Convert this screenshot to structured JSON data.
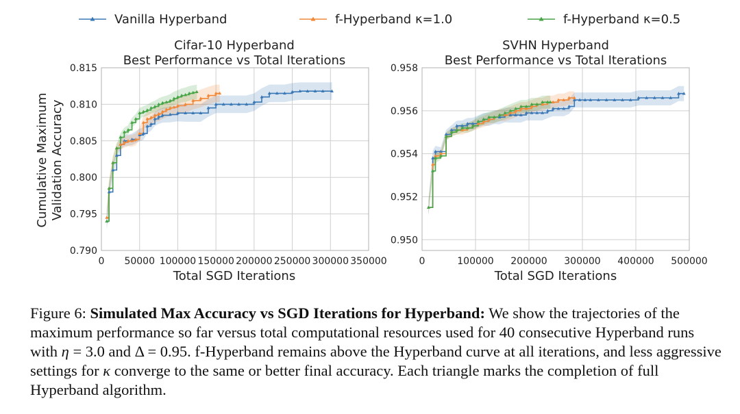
{
  "legend": {
    "entries": [
      {
        "label": "Vanilla Hyperband",
        "color": "#3a78b5"
      },
      {
        "label": "f-Hyperband κ=1.0",
        "color": "#f08838"
      },
      {
        "label": "f-Hyperband κ=0.5",
        "color": "#47a447"
      }
    ]
  },
  "chart_data": [
    {
      "type": "line",
      "title": [
        "Cifar-10 Hyperband",
        "Best Performance vs Total Iterations"
      ],
      "xlabel": "Total SGD Iterations",
      "ylabel": [
        "Cumulative Maximum",
        "Validation Accuracy"
      ],
      "xlim": [
        0,
        350000
      ],
      "ylim": [
        0.79,
        0.815
      ],
      "xticks": [
        0,
        50000,
        100000,
        150000,
        200000,
        250000,
        300000,
        350000
      ],
      "xtick_labels": [
        "0",
        "50000",
        "100000",
        "150000",
        "200000",
        "250000",
        "300000",
        "350000"
      ],
      "yticks": [
        0.79,
        0.795,
        0.8,
        0.805,
        0.81,
        0.815
      ],
      "ytick_labels": [
        "0.790",
        "0.795",
        "0.800",
        "0.805",
        "0.810",
        "0.815"
      ],
      "grid": true,
      "series": [
        {
          "name": "Vanilla Hyperband",
          "color": "#3a78b5",
          "band": 0.0012,
          "x": [
            7000,
            10000,
            15000,
            20000,
            25000,
            30000,
            40000,
            50000,
            55000,
            60000,
            65000,
            70000,
            75000,
            80000,
            90000,
            100000,
            110000,
            120000,
            130000,
            140000,
            150000,
            160000,
            170000,
            180000,
            190000,
            200000,
            210000,
            220000,
            230000,
            240000,
            250000,
            260000,
            270000,
            280000,
            290000,
            302000
          ],
          "y": [
            0.794,
            0.798,
            0.801,
            0.803,
            0.8045,
            0.805,
            0.8052,
            0.8058,
            0.806,
            0.807,
            0.8073,
            0.808,
            0.8083,
            0.8085,
            0.8086,
            0.8088,
            0.8088,
            0.8088,
            0.8088,
            0.8095,
            0.81,
            0.81,
            0.81,
            0.81,
            0.81,
            0.8103,
            0.811,
            0.8115,
            0.8115,
            0.8115,
            0.8117,
            0.8118,
            0.8118,
            0.8118,
            0.8118,
            0.8118
          ]
        },
        {
          "name": "f-Hyperband κ=1.0",
          "color": "#f08838",
          "band": 0.0012,
          "x": [
            7000,
            10000,
            15000,
            20000,
            25000,
            30000,
            35000,
            40000,
            45000,
            50000,
            55000,
            60000,
            65000,
            70000,
            75000,
            80000,
            85000,
            90000,
            95000,
            100000,
            110000,
            120000,
            130000,
            140000,
            150000,
            155000
          ],
          "y": [
            0.7945,
            0.7985,
            0.802,
            0.804,
            0.8045,
            0.8048,
            0.805,
            0.805,
            0.8052,
            0.806,
            0.8075,
            0.808,
            0.8082,
            0.8085,
            0.8087,
            0.809,
            0.8093,
            0.8095,
            0.8096,
            0.8098,
            0.81,
            0.8105,
            0.8108,
            0.8112,
            0.8115,
            0.8115
          ]
        },
        {
          "name": "f-Hyperband κ=0.5",
          "color": "#47a447",
          "band": 0.001,
          "x": [
            7000,
            10000,
            15000,
            20000,
            25000,
            30000,
            35000,
            40000,
            45000,
            50000,
            55000,
            60000,
            65000,
            70000,
            75000,
            80000,
            85000,
            90000,
            95000,
            100000,
            105000,
            110000,
            115000,
            120000,
            125000
          ],
          "y": [
            0.794,
            0.7985,
            0.802,
            0.804,
            0.8055,
            0.8062,
            0.8065,
            0.8075,
            0.808,
            0.8088,
            0.809,
            0.8092,
            0.8095,
            0.8097,
            0.81,
            0.8102,
            0.8103,
            0.8105,
            0.8108,
            0.811,
            0.8112,
            0.8113,
            0.8115,
            0.8116,
            0.8117
          ]
        }
      ]
    },
    {
      "type": "line",
      "title": [
        "SVHN Hyperband",
        "Best Performance vs Total Iterations"
      ],
      "xlabel": "Total SGD Iterations",
      "ylabel": [],
      "xlim": [
        0,
        500000
      ],
      "ylim": [
        0.9495,
        0.958
      ],
      "xticks": [
        0,
        100000,
        200000,
        300000,
        400000,
        500000
      ],
      "xtick_labels": [
        "0",
        "100000",
        "200000",
        "300000",
        "400000",
        "500000"
      ],
      "yticks": [
        0.95,
        0.952,
        0.954,
        0.956,
        0.958
      ],
      "ytick_labels": [
        "0.950",
        "0.952",
        "0.954",
        "0.956",
        "0.958"
      ],
      "grid": true,
      "series": [
        {
          "name": "Vanilla Hyperband",
          "color": "#3a78b5",
          "band": 0.00035,
          "x": [
            12000,
            20000,
            25000,
            35000,
            45000,
            55000,
            65000,
            75000,
            85000,
            95000,
            105000,
            115000,
            125000,
            135000,
            145000,
            155000,
            165000,
            175000,
            185000,
            195000,
            205000,
            215000,
            225000,
            235000,
            245000,
            255000,
            265000,
            275000,
            285000,
            295000,
            305000,
            315000,
            330000,
            345000,
            360000,
            375000,
            390000,
            405000,
            420000,
            435000,
            450000,
            465000,
            480000,
            490000
          ],
          "y": [
            0.9515,
            0.9538,
            0.9541,
            0.9541,
            0.9549,
            0.9551,
            0.9553,
            0.9553,
            0.9554,
            0.9554,
            0.9555,
            0.9556,
            0.9556,
            0.9557,
            0.9557,
            0.9558,
            0.9558,
            0.9558,
            0.9558,
            0.9559,
            0.9559,
            0.9559,
            0.9559,
            0.956,
            0.9561,
            0.9561,
            0.9561,
            0.9562,
            0.9565,
            0.9565,
            0.9565,
            0.9565,
            0.9565,
            0.9565,
            0.9565,
            0.9565,
            0.9565,
            0.9566,
            0.9566,
            0.9566,
            0.9566,
            0.9566,
            0.9568,
            0.9568
          ]
        },
        {
          "name": "f-Hyperband κ=1.0",
          "color": "#f08838",
          "band": 0.0003,
          "x": [
            12000,
            20000,
            25000,
            35000,
            45000,
            55000,
            65000,
            75000,
            85000,
            95000,
            105000,
            115000,
            125000,
            135000,
            145000,
            155000,
            165000,
            175000,
            185000,
            195000,
            205000,
            215000,
            225000,
            235000,
            245000,
            255000,
            265000,
            275000,
            285000
          ],
          "y": [
            0.9515,
            0.9535,
            0.9539,
            0.954,
            0.9548,
            0.955,
            0.9551,
            0.9551,
            0.9552,
            0.9553,
            0.9554,
            0.9555,
            0.9556,
            0.9557,
            0.9558,
            0.9558,
            0.9559,
            0.956,
            0.9561,
            0.9561,
            0.9562,
            0.9563,
            0.9563,
            0.9564,
            0.9564,
            0.9565,
            0.9565,
            0.9566,
            0.9566
          ]
        },
        {
          "name": "f-Hyperband κ=0.5",
          "color": "#47a447",
          "band": 0.0003,
          "x": [
            12000,
            20000,
            25000,
            35000,
            45000,
            55000,
            65000,
            75000,
            85000,
            95000,
            105000,
            115000,
            125000,
            135000,
            145000,
            155000,
            165000,
            175000,
            185000,
            195000,
            205000,
            215000,
            225000,
            235000,
            240000
          ],
          "y": [
            0.9515,
            0.9532,
            0.9538,
            0.9539,
            0.9548,
            0.955,
            0.9551,
            0.9552,
            0.9552,
            0.9553,
            0.9555,
            0.9556,
            0.9557,
            0.9557,
            0.9558,
            0.9559,
            0.956,
            0.9561,
            0.9562,
            0.9562,
            0.9563,
            0.9563,
            0.9564,
            0.9564,
            0.9564
          ]
        }
      ]
    }
  ],
  "caption": {
    "figure_label": "Figure 6:",
    "bold_title": "Simulated Max Accuracy vs SGD Iterations for Hyperband:",
    "text_1": "We show the trajectories of the maximum performance so far versus total computational resources used for 40 consecutive Hyperband runs with ",
    "eta_symbol": "η",
    "eta_eq": " = 3.0 and ",
    "delta_symbol": "Δ",
    "delta_eq": " = 0.95. f-Hyperband remains above the Hyperband curve at all iterations, and less aggressive settings for ",
    "kappa_symbol": "κ",
    "text_2": " converge to the same or better final accuracy. Each triangle marks the completion of full Hyperband algorithm."
  }
}
